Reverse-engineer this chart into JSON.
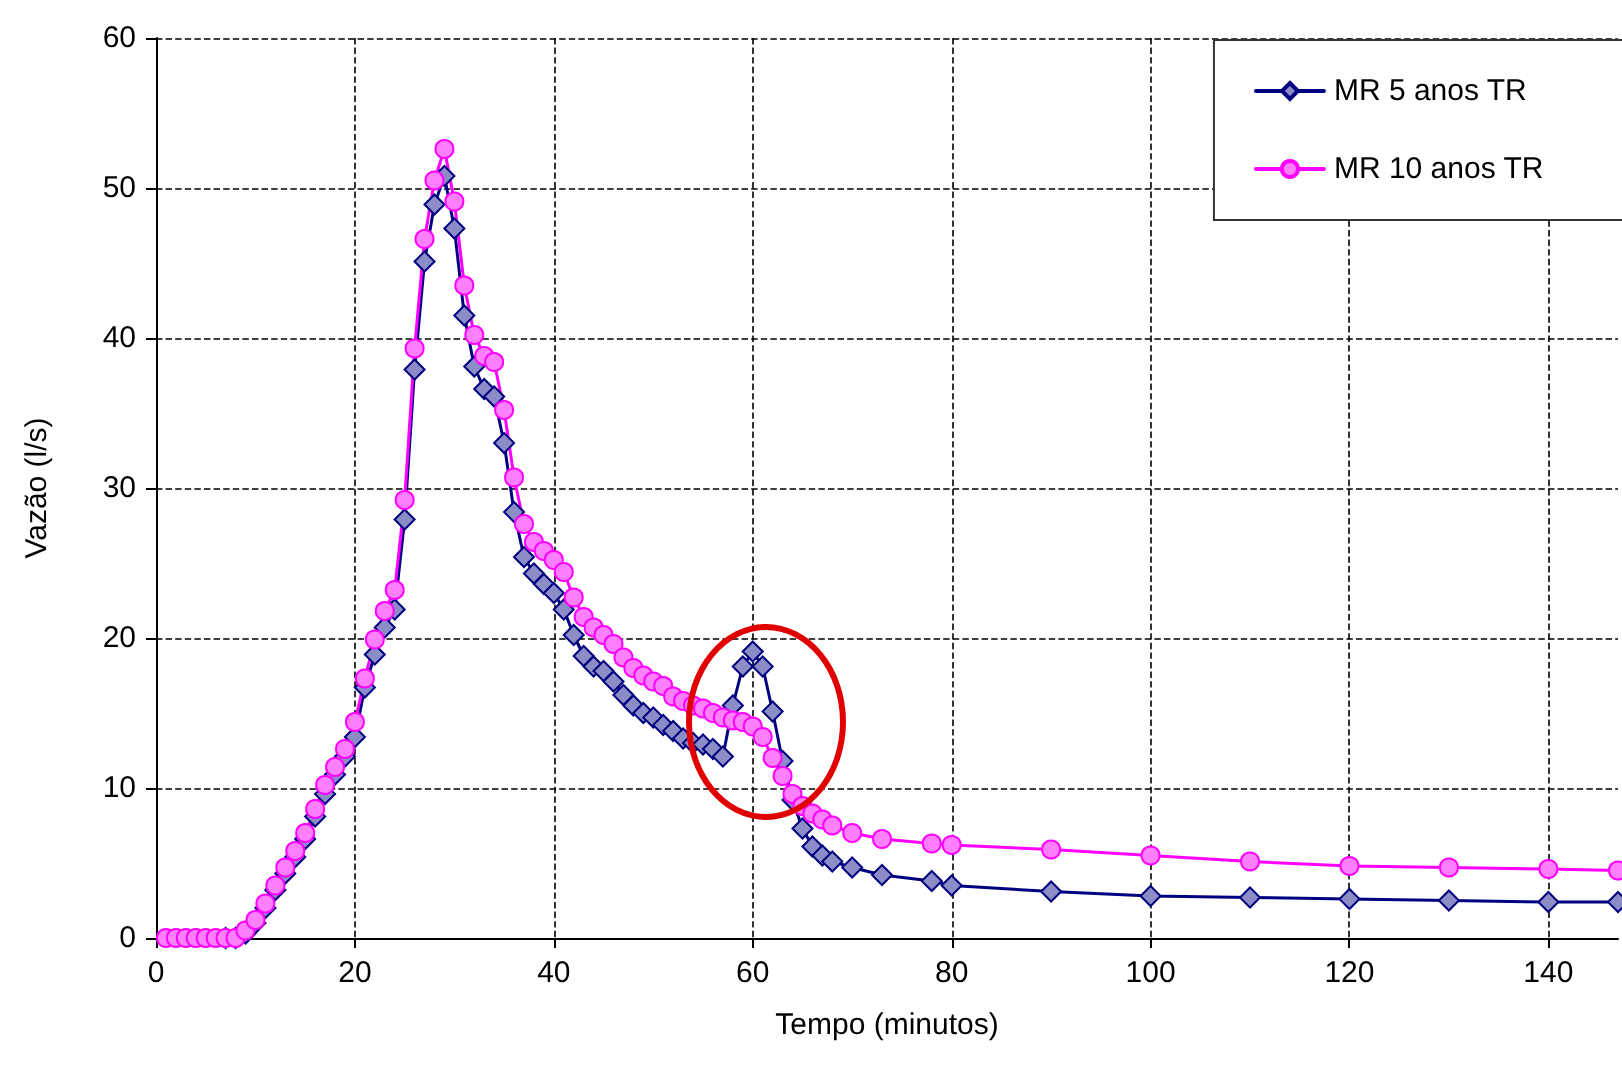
{
  "chart_data": {
    "type": "line",
    "xlabel": "Tempo (minutos)",
    "ylabel": "Vazão (l/s)",
    "x": [
      1,
      2,
      3,
      4,
      5,
      6,
      7,
      8,
      9,
      10,
      11,
      12,
      13,
      14,
      15,
      16,
      17,
      18,
      19,
      20,
      21,
      22,
      23,
      24,
      25,
      26,
      27,
      28,
      29,
      30,
      31,
      32,
      33,
      34,
      35,
      36,
      37,
      38,
      39,
      40,
      41,
      42,
      43,
      44,
      45,
      46,
      47,
      48,
      49,
      50,
      51,
      52,
      53,
      54,
      55,
      56,
      57,
      58,
      59,
      60,
      61,
      62,
      63,
      64,
      65,
      66,
      67,
      68,
      70,
      73,
      78,
      80,
      90,
      100,
      110,
      120,
      130,
      140,
      147
    ],
    "series": [
      {
        "name": "MR 5 anos TR",
        "color": "#000080",
        "marker": "diamond",
        "values": [
          null,
          null,
          null,
          null,
          null,
          null,
          0,
          0,
          0.3,
          1.0,
          2.0,
          3.2,
          4.3,
          5.4,
          6.6,
          8.1,
          9.6,
          10.9,
          12.1,
          13.4,
          16.7,
          18.9,
          20.7,
          21.9,
          27.9,
          37.9,
          45.1,
          48.9,
          50.8,
          47.3,
          41.5,
          38.1,
          36.6,
          36.1,
          33.0,
          28.4,
          25.4,
          24.3,
          23.6,
          23.0,
          21.9,
          20.2,
          18.8,
          18.1,
          17.8,
          17.1,
          16.2,
          15.5,
          15.0,
          14.7,
          14.2,
          13.8,
          13.3,
          13.0,
          12.9,
          12.6,
          12.1,
          15.5,
          18.1,
          19.1,
          18.1,
          15.1,
          11.8,
          9.2,
          7.3,
          6.1,
          5.5,
          5.1,
          4.7,
          4.2,
          3.8,
          3.5,
          3.1,
          2.8,
          2.7,
          2.6,
          2.5,
          2.4,
          2.4
        ]
      },
      {
        "name": "MR 10 anos TR",
        "color": "#ff00ff",
        "marker": "circle",
        "values": [
          0,
          0,
          0,
          0,
          0,
          0,
          0,
          0,
          0.5,
          1.2,
          2.3,
          3.5,
          4.7,
          5.8,
          7.0,
          8.6,
          10.2,
          11.4,
          12.6,
          14.4,
          17.3,
          19.9,
          21.8,
          23.2,
          29.2,
          39.3,
          46.6,
          50.5,
          52.6,
          49.1,
          43.5,
          40.2,
          38.8,
          38.4,
          35.2,
          30.7,
          27.6,
          26.4,
          25.8,
          25.2,
          24.4,
          22.7,
          21.4,
          20.7,
          20.2,
          19.6,
          18.7,
          18.0,
          17.5,
          17.1,
          16.8,
          16.1,
          15.8,
          15.5,
          15.3,
          15.0,
          14.7,
          14.5,
          14.4,
          14.1,
          13.4,
          12.0,
          10.8,
          9.6,
          8.8,
          8.3,
          7.9,
          7.5,
          7.0,
          6.6,
          6.3,
          6.2,
          5.9,
          5.5,
          5.1,
          4.8,
          4.7,
          4.6,
          4.5
        ]
      }
    ],
    "xlim": [
      0,
      147
    ],
    "xticks": [
      0,
      20,
      40,
      60,
      80,
      100,
      120,
      140
    ],
    "ylim": [
      0,
      60
    ],
    "yticks": [
      0,
      10,
      20,
      30,
      40,
      50,
      60
    ],
    "grid": true,
    "legend": "top right",
    "line_style": "solid"
  }
}
